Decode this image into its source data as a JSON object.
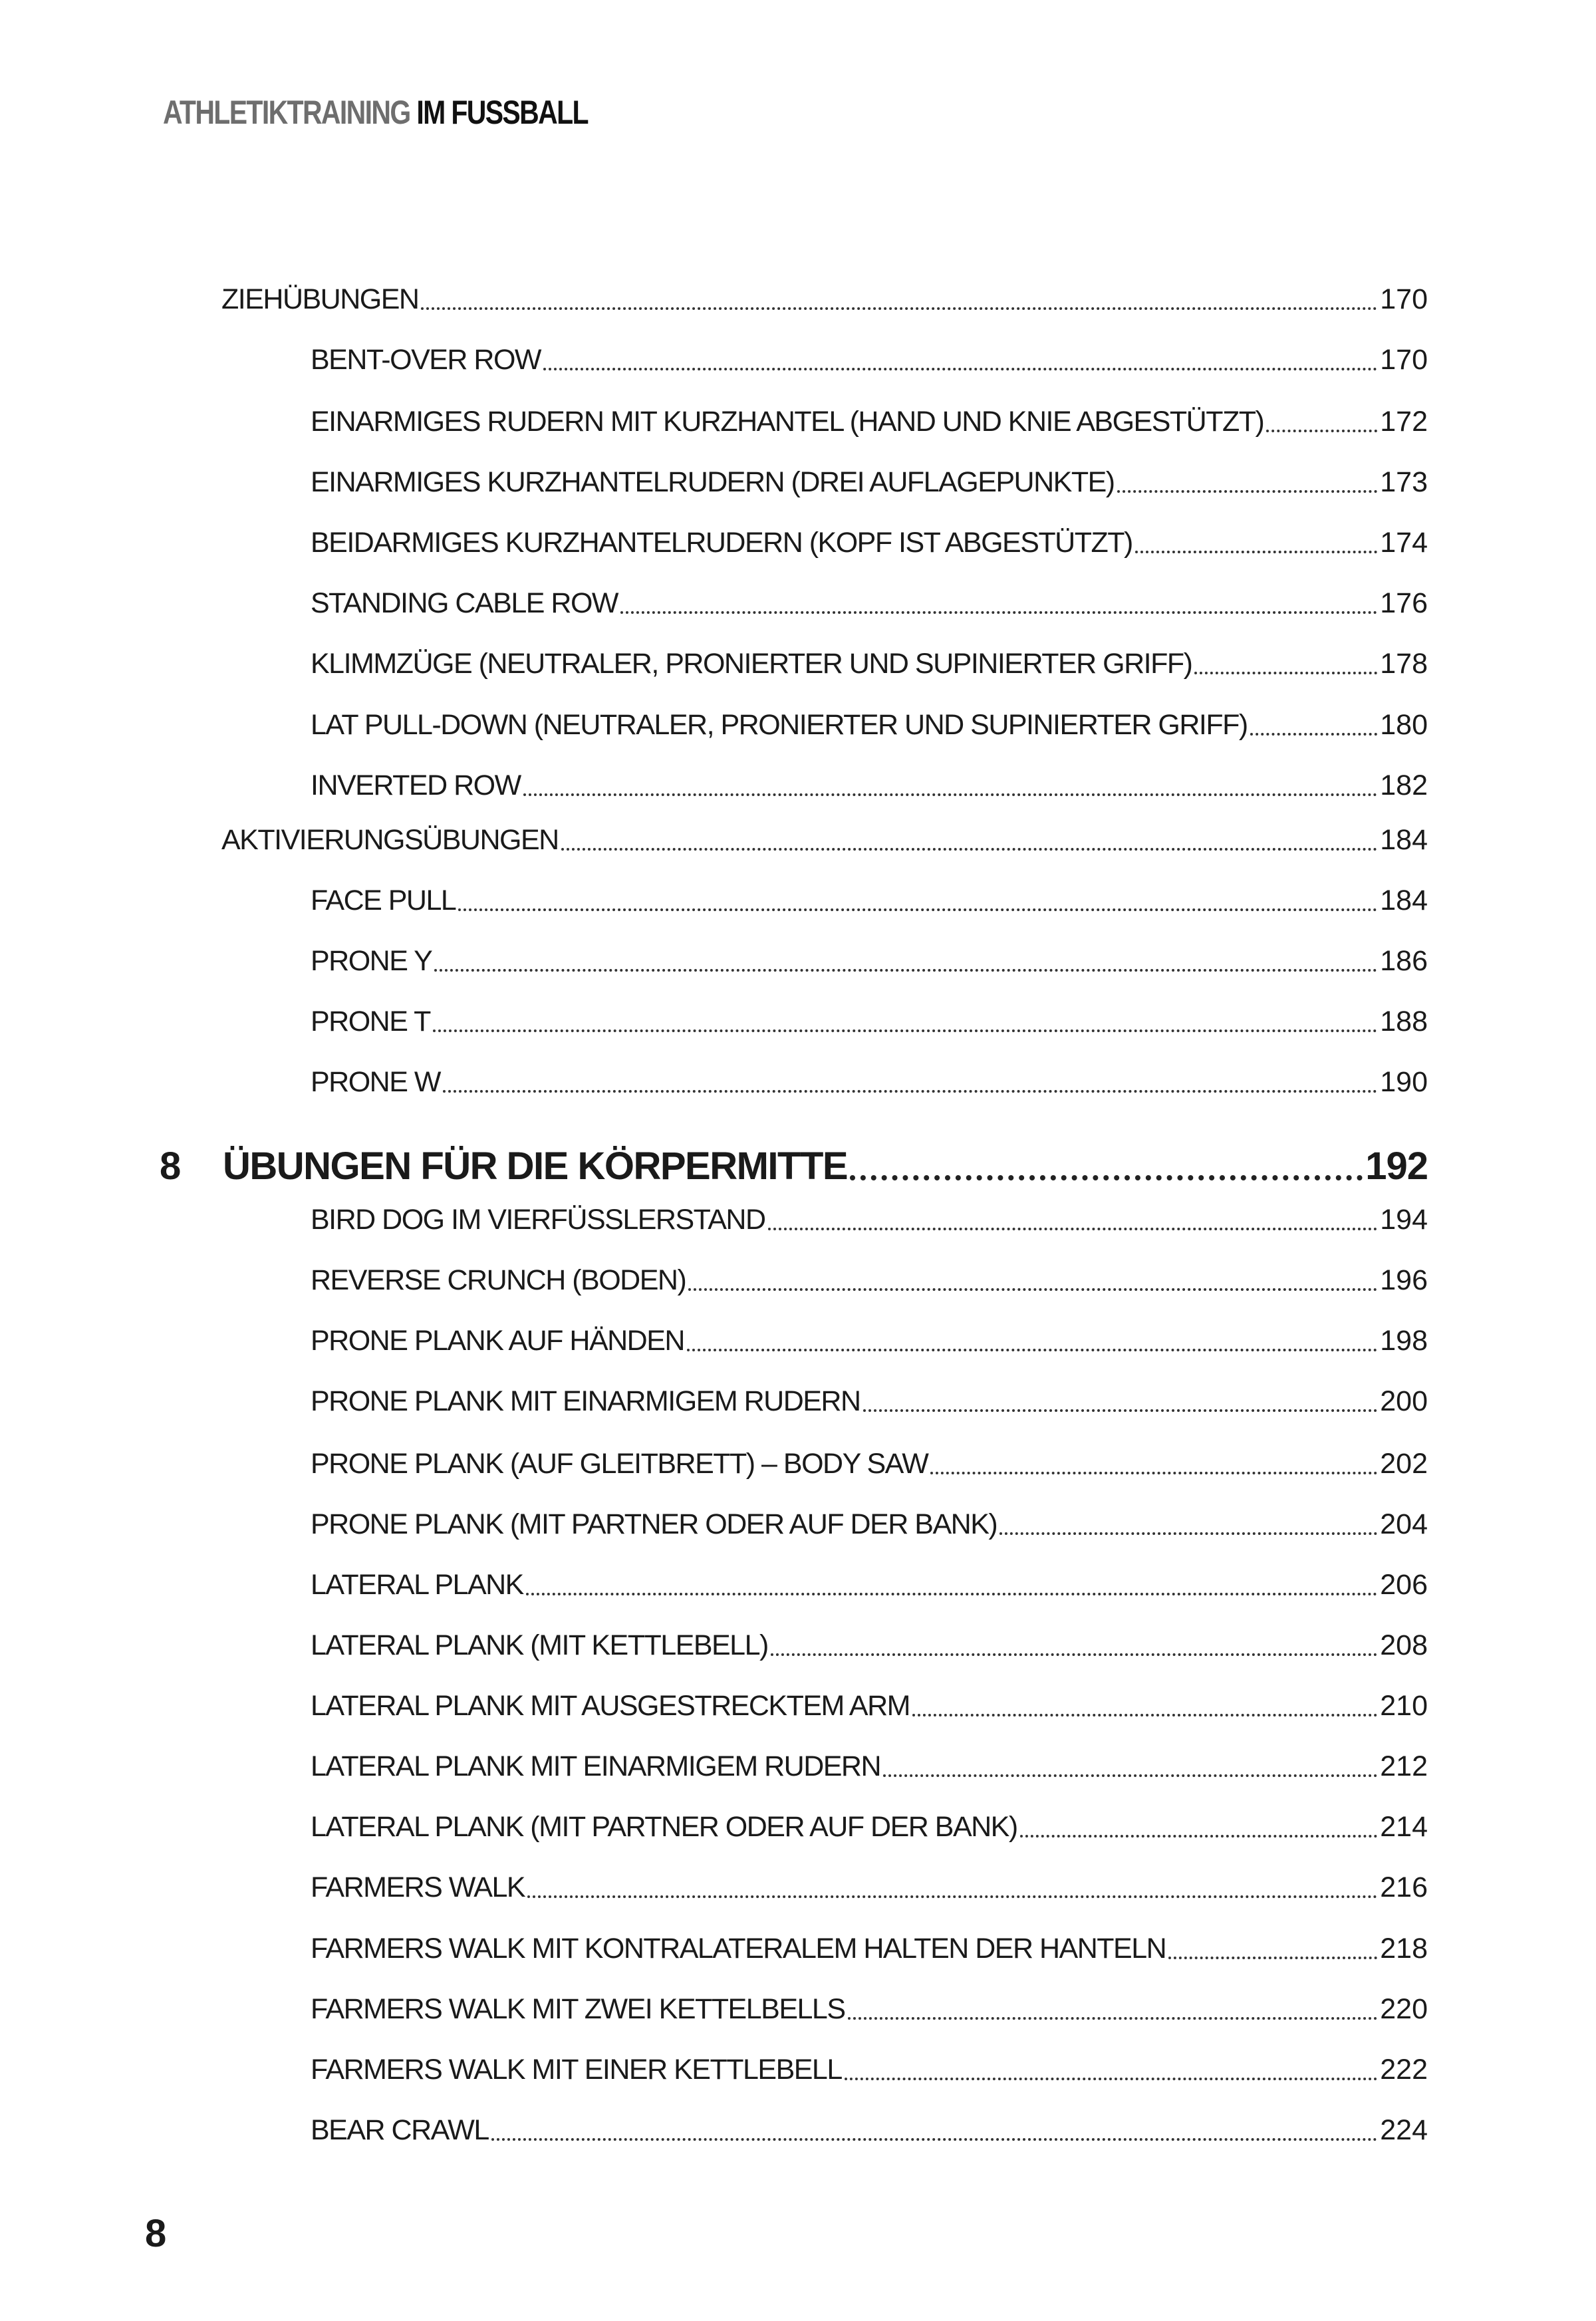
{
  "header": {
    "title_part1": "ATHLETIKTRAINING",
    "title_part2": "IM FUSSBALL"
  },
  "toc": [
    {
      "level": 1,
      "title": "ZIEHÜBUNGEN",
      "page": "170"
    },
    {
      "level": 2,
      "title": "BENT-OVER ROW",
      "page": "170"
    },
    {
      "level": 2,
      "title": "EINARMIGES RUDERN MIT KURZHANTEL (HAND UND KNIE ABGESTÜTZT)",
      "page": "172"
    },
    {
      "level": 2,
      "title": "EINARMIGES KURZHANTELRUDERN (DREI AUFLAGEPUNKTE)",
      "page": "173"
    },
    {
      "level": 2,
      "title": "BEIDARMIGES KURZHANTELRUDERN (KOPF IST ABGESTÜTZT)",
      "page": "174"
    },
    {
      "level": 2,
      "title": "STANDING CABLE ROW",
      "page": "176"
    },
    {
      "level": 2,
      "title": "KLIMMZÜGE (NEUTRALER, PRONIERTER UND SUPINIERTER GRIFF)",
      "page": "178"
    },
    {
      "level": 2,
      "title": "LAT PULL-DOWN (NEUTRALER, PRONIERTER UND SUPINIERTER GRIFF)",
      "page": "180"
    },
    {
      "level": 2,
      "title": "INVERTED ROW",
      "page": "182"
    },
    {
      "level": 1,
      "title": "AKTIVIERUNGSÜBUNGEN",
      "page": "184"
    },
    {
      "level": 2,
      "title": "FACE PULL",
      "page": "184"
    },
    {
      "level": 2,
      "title": "PRONE Y",
      "page": "186"
    },
    {
      "level": 2,
      "title": "PRONE T",
      "page": "188"
    },
    {
      "level": 2,
      "title": "PRONE W",
      "page": "190"
    },
    {
      "level": 0,
      "number": "8",
      "title": "ÜBUNGEN FÜR DIE KÖRPERMITTE",
      "page": "192"
    },
    {
      "level": 2,
      "title": "BIRD DOG IM VIERFÜSSLERSTAND",
      "page": "194"
    },
    {
      "level": 2,
      "title": "REVERSE CRUNCH (BODEN)",
      "page": "196"
    },
    {
      "level": 2,
      "title": "PRONE PLANK AUF HÄNDEN",
      "page": "198"
    },
    {
      "level": 2,
      "title": "PRONE PLANK MIT EINARMIGEM RUDERN",
      "page": "200"
    },
    {
      "level": 2,
      "title": "PRONE PLANK (AUF GLEITBRETT) – BODY SAW",
      "page": "202"
    },
    {
      "level": 2,
      "title": "PRONE PLANK (MIT PARTNER ODER AUF DER BANK)",
      "page": "204"
    },
    {
      "level": 2,
      "title": "LATERAL PLANK",
      "page": "206"
    },
    {
      "level": 2,
      "title": "LATERAL PLANK (MIT KETTLEBELL)",
      "page": "208"
    },
    {
      "level": 2,
      "title": "LATERAL PLANK MIT AUSGESTRECKTEM ARM",
      "page": "210"
    },
    {
      "level": 2,
      "title": "LATERAL PLANK MIT EINARMIGEM RUDERN",
      "page": "212"
    },
    {
      "level": 2,
      "title": "LATERAL PLANK (MIT PARTNER ODER AUF DER BANK)",
      "page": "214"
    },
    {
      "level": 2,
      "title": "FARMERS WALK",
      "page": "216"
    },
    {
      "level": 2,
      "title": "FARMERS WALK MIT KONTRALATERALEM HALTEN DER HANTELN",
      "page": "218"
    },
    {
      "level": 2,
      "title": "FARMERS WALK MIT ZWEI KETTELBELLS",
      "page": "220"
    },
    {
      "level": 2,
      "title": "FARMERS WALK MIT EINER KETTLEBELL",
      "page": "222"
    },
    {
      "level": 2,
      "title": "BEAR CRAWL",
      "page": "224"
    }
  ],
  "footer": {
    "page_number": "8"
  }
}
